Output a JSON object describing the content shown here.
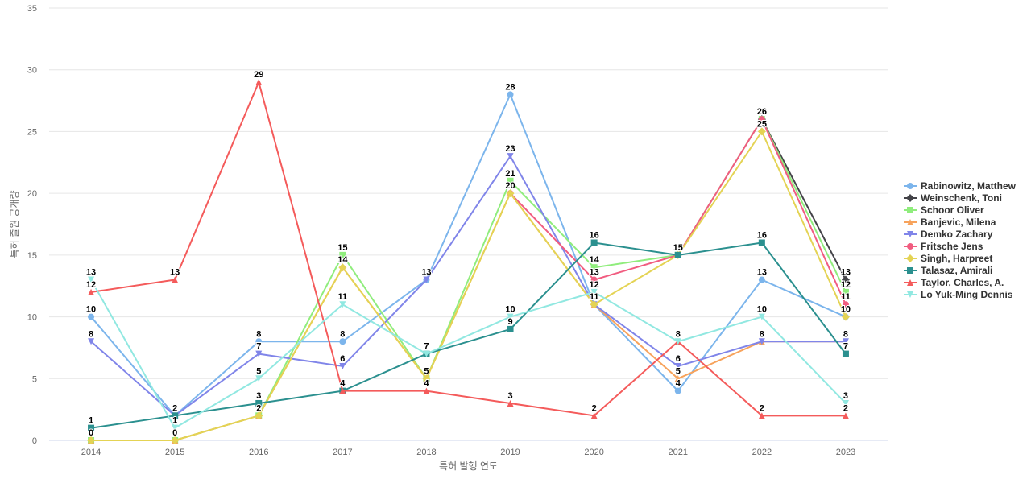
{
  "chart_data": {
    "type": "line",
    "title": "",
    "xlabel": "특허 발행 연도",
    "ylabel": "특허 출원 공개량",
    "ylim": [
      0,
      35
    ],
    "yticks": [
      0,
      5,
      10,
      15,
      20,
      25,
      30,
      35
    ],
    "x": [
      "2014",
      "2015",
      "2016",
      "2017",
      "2018",
      "2019",
      "2020",
      "2021",
      "2022",
      "2023"
    ],
    "grid": true,
    "legend_position": "right",
    "series": [
      {
        "name": "Rabinowitz, Matthew",
        "color": "#7cb5ec",
        "marker": "circle",
        "values": [
          10,
          2,
          8,
          8,
          13,
          28,
          11,
          4,
          13,
          10
        ]
      },
      {
        "name": "Weinschenk, Toni",
        "color": "#434348",
        "marker": "diamond",
        "values": [
          null,
          null,
          null,
          null,
          null,
          null,
          null,
          null,
          26,
          13
        ]
      },
      {
        "name": "Schoor Oliver",
        "color": "#90ed7d",
        "marker": "square",
        "values": [
          0,
          0,
          2,
          15,
          5,
          21,
          14,
          15,
          26,
          12
        ]
      },
      {
        "name": "Banjevic, Milena",
        "color": "#f7a35c",
        "marker": "triangle",
        "values": [
          0,
          0,
          2,
          14,
          5,
          20,
          11,
          5,
          8,
          8
        ]
      },
      {
        "name": "Demko Zachary",
        "color": "#8085e9",
        "marker": "triangle-down",
        "values": [
          8,
          2,
          7,
          6,
          13,
          23,
          11,
          6,
          8,
          8
        ]
      },
      {
        "name": "Fritsche Jens",
        "color": "#f15c80",
        "marker": "circle",
        "values": [
          null,
          null,
          null,
          null,
          null,
          20,
          13,
          15,
          26,
          11
        ]
      },
      {
        "name": "Singh, Harpreet",
        "color": "#e4d354",
        "marker": "diamond",
        "values": [
          0,
          0,
          2,
          14,
          5,
          20,
          11,
          15,
          25,
          10
        ]
      },
      {
        "name": "Talasaz, Amirali",
        "color": "#2b908f",
        "marker": "square",
        "values": [
          1,
          2,
          3,
          4,
          7,
          9,
          16,
          15,
          16,
          7
        ]
      },
      {
        "name": "Taylor, Charles, A.",
        "color": "#f45b5b",
        "marker": "triangle",
        "values": [
          12,
          13,
          29,
          4,
          4,
          3,
          2,
          8,
          2,
          2
        ]
      },
      {
        "name": "Lo Yuk-Ming Dennis",
        "color": "#91e8e1",
        "marker": "triangle-down",
        "values": [
          13,
          1,
          5,
          11,
          7,
          10,
          12,
          8,
          10,
          3
        ]
      }
    ],
    "data_labels": [
      {
        "x": "2014",
        "y": 13,
        "text": "13"
      },
      {
        "x": "2014",
        "y": 12,
        "text": "12"
      },
      {
        "x": "2014",
        "y": 10,
        "text": "10"
      },
      {
        "x": "2014",
        "y": 8,
        "text": "8"
      },
      {
        "x": "2014",
        "y": 1,
        "text": "1"
      },
      {
        "x": "2014",
        "y": 0,
        "text": "0"
      },
      {
        "x": "2015",
        "y": 13,
        "text": "13"
      },
      {
        "x": "2015",
        "y": 2,
        "text": "2"
      },
      {
        "x": "2015",
        "y": 1,
        "text": "1"
      },
      {
        "x": "2015",
        "y": 0,
        "text": "0"
      },
      {
        "x": "2016",
        "y": 29,
        "text": "29"
      },
      {
        "x": "2016",
        "y": 8,
        "text": "8"
      },
      {
        "x": "2016",
        "y": 7,
        "text": "7"
      },
      {
        "x": "2016",
        "y": 5,
        "text": "5"
      },
      {
        "x": "2016",
        "y": 3,
        "text": "3"
      },
      {
        "x": "2016",
        "y": 2,
        "text": "2"
      },
      {
        "x": "2017",
        "y": 15,
        "text": "15"
      },
      {
        "x": "2017",
        "y": 14,
        "text": "14"
      },
      {
        "x": "2017",
        "y": 11,
        "text": "11"
      },
      {
        "x": "2017",
        "y": 8,
        "text": "8"
      },
      {
        "x": "2017",
        "y": 6,
        "text": "6"
      },
      {
        "x": "2017",
        "y": 4,
        "text": "4"
      },
      {
        "x": "2018",
        "y": 13,
        "text": "13"
      },
      {
        "x": "2018",
        "y": 7,
        "text": "7"
      },
      {
        "x": "2018",
        "y": 5,
        "text": "5"
      },
      {
        "x": "2018",
        "y": 4,
        "text": "4"
      },
      {
        "x": "2019",
        "y": 28,
        "text": "28"
      },
      {
        "x": "2019",
        "y": 23,
        "text": "23"
      },
      {
        "x": "2019",
        "y": 21,
        "text": "21"
      },
      {
        "x": "2019",
        "y": 20,
        "text": "20"
      },
      {
        "x": "2019",
        "y": 10,
        "text": "10"
      },
      {
        "x": "2019",
        "y": 9,
        "text": "9"
      },
      {
        "x": "2019",
        "y": 3,
        "text": "3"
      },
      {
        "x": "2020",
        "y": 16,
        "text": "16"
      },
      {
        "x": "2020",
        "y": 14,
        "text": "14"
      },
      {
        "x": "2020",
        "y": 13,
        "text": "13"
      },
      {
        "x": "2020",
        "y": 12,
        "text": "12"
      },
      {
        "x": "2020",
        "y": 11,
        "text": "11"
      },
      {
        "x": "2020",
        "y": 2,
        "text": "2"
      },
      {
        "x": "2021",
        "y": 15,
        "text": "15"
      },
      {
        "x": "2021",
        "y": 8,
        "text": "8"
      },
      {
        "x": "2021",
        "y": 6,
        "text": "6"
      },
      {
        "x": "2021",
        "y": 5,
        "text": "5"
      },
      {
        "x": "2021",
        "y": 4,
        "text": "4"
      },
      {
        "x": "2022",
        "y": 26,
        "text": "26"
      },
      {
        "x": "2022",
        "y": 25,
        "text": "25"
      },
      {
        "x": "2022",
        "y": 16,
        "text": "16"
      },
      {
        "x": "2022",
        "y": 13,
        "text": "13"
      },
      {
        "x": "2022",
        "y": 10,
        "text": "10"
      },
      {
        "x": "2022",
        "y": 8,
        "text": "8"
      },
      {
        "x": "2022",
        "y": 2,
        "text": "2"
      },
      {
        "x": "2023",
        "y": 13,
        "text": "13"
      },
      {
        "x": "2023",
        "y": 12,
        "text": "12"
      },
      {
        "x": "2023",
        "y": 11,
        "text": "11"
      },
      {
        "x": "2023",
        "y": 10,
        "text": "10"
      },
      {
        "x": "2023",
        "y": 8,
        "text": "8"
      },
      {
        "x": "2023",
        "y": 7,
        "text": "7"
      },
      {
        "x": "2023",
        "y": 3,
        "text": "3"
      },
      {
        "x": "2023",
        "y": 2,
        "text": "2"
      }
    ]
  }
}
